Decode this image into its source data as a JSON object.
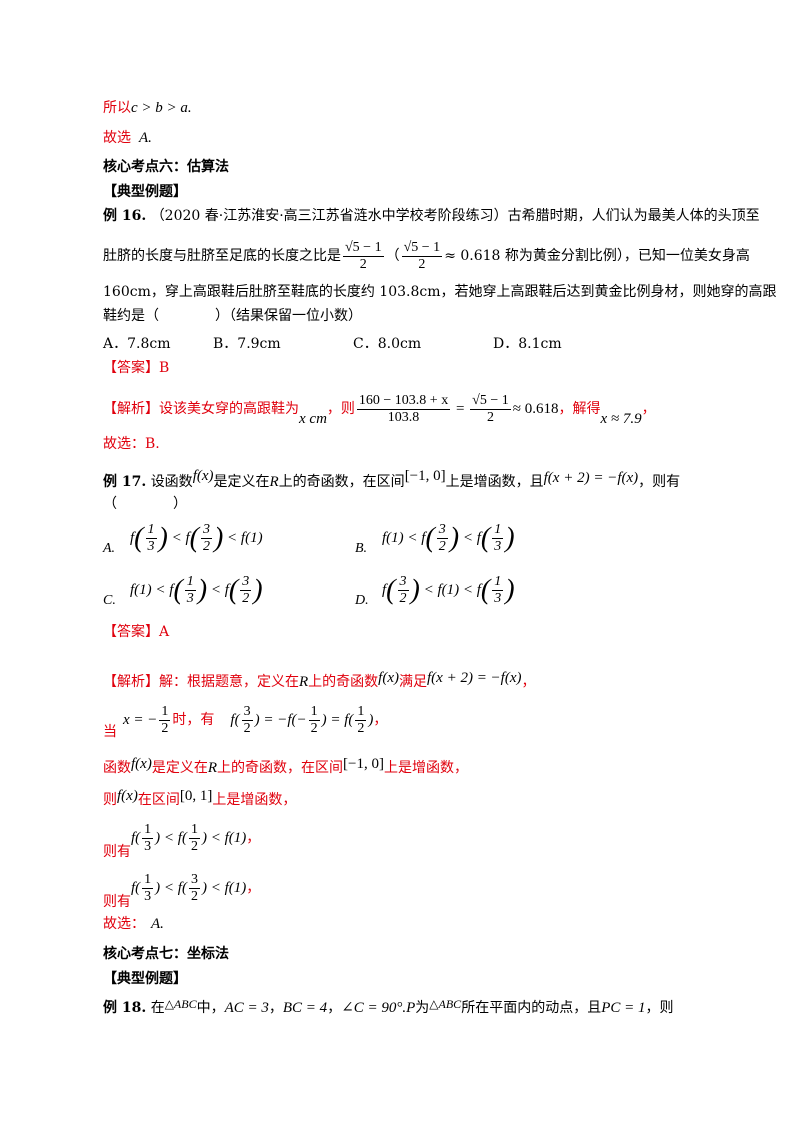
{
  "p1": {
    "prefix": "所以",
    "math": "c > b > a."
  },
  "p2": {
    "prefix": "故选",
    "math": "A."
  },
  "section6": "核心考点六：估算法",
  "typical1": "【典型例题】",
  "ex16": {
    "label": "例 16.",
    "line1": "（2020 春·江苏淮安·高三江苏省涟水中学校考阶段练习）古希腊时期，人们认为最美人体的头顶至",
    "line2_a": "肚脐的长度与肚脐至足底的长度之比是",
    "frac_num": "√5 − 1",
    "frac_den": "2",
    "line2_b": "（",
    "line2_c": "≈ 0.618 称为黄金分割比例），已知一位美女身高",
    "line3": "160cm，穿上高跟鞋后肚脐至鞋底的长度约 103.8cm，若她穿上高跟鞋后达到黄金比例身材，则她穿的高跟",
    "line4": "鞋约是（　　　　）（结果保留一位小数）",
    "options": [
      "A．7.8cm",
      "B．7.9cm",
      "C．8.0cm",
      "D．8.1cm"
    ],
    "answer": "【答案】B",
    "analysis_label": "【解析】",
    "analysis_a": "设该美女穿的高跟鞋为",
    "analysis_var": "x cm",
    "analysis_b": "，则",
    "analysis_num": "160 − 103.8 + x",
    "analysis_den": "103.8",
    "analysis_eq": "≈ 0.618",
    "analysis_c": "，解得",
    "analysis_res": "x ≈ 7.9",
    "analysis_end": "，",
    "conclusion": "故选：B."
  },
  "ex17": {
    "label": "例 17.",
    "text_a": "设函数",
    "fx": "f(x)",
    "text_b": "是定义在",
    "R": "R",
    "text_c": "上的奇函数，在区间",
    "interval": "[−1, 0]",
    "text_d": "上是增函数，且",
    "eq": "f(x + 2) = −f(x)",
    "text_e": "，则有",
    "paren": "（　　　　）",
    "optA_label": "A.",
    "optB_label": "B.",
    "optC_label": "C.",
    "optD_label": "D.",
    "answer": "【答案】A",
    "analysis_label": "【解析】",
    "analysis_1a": "解：根据题意，定义在",
    "analysis_1b": "上的奇函数",
    "analysis_1c": "满足",
    "analysis_1eq": "f(x + 2) = −f(x)",
    "comma": "，",
    "when": "当",
    "x_eq": "x = −",
    "shi": "时，有",
    "f_eq": "f(",
    "line3a": "函数",
    "line3b": "是定义在",
    "line3c": "上的奇函数，在区间",
    "line3d": "上是增函数，",
    "line4a": "则",
    "line4b": "在区间",
    "interval2": "[0, 1]",
    "line4c": "上是增函数，",
    "thus": "则有",
    "conclusion_prefix": "故选：",
    "conclusion_math": "A."
  },
  "section7": "核心考点七：坐标法",
  "typical2": "【典型例题】",
  "ex18": {
    "label": "例 18.",
    "a": "在",
    "tri": "△ABC",
    "b": "中，",
    "ac": "AC = 3",
    "sep": "，",
    "bc": "BC = 4",
    "angle": "∠C = 90°.P",
    "c": "为",
    "d": "所在平面内的动点，且",
    "pc": "PC = 1",
    "e": "，则"
  }
}
